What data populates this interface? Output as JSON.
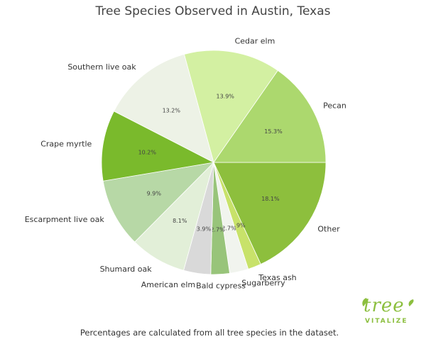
{
  "chart_data": {
    "type": "pie",
    "title": "Tree Species Observed in Austin, Texas",
    "slices": [
      {
        "label": "Other",
        "value": 18.1,
        "pct_label": "18.1%",
        "color": "#8dbf3d"
      },
      {
        "label": "Texas ash",
        "value": 1.9,
        "pct_label": "1.9%",
        "color": "#c8e26a"
      },
      {
        "label": "Sugarberry",
        "value": 2.7,
        "pct_label": "2.7%",
        "color": "#f1f4ee"
      },
      {
        "label": "Bald cypress",
        "value": 2.7,
        "pct_label": "2.7%",
        "color": "#98c47a"
      },
      {
        "label": "American elm",
        "value": 3.9,
        "pct_label": "3.9%",
        "color": "#d9d9d9"
      },
      {
        "label": "Shumard oak",
        "value": 8.1,
        "pct_label": "8.1%",
        "color": "#e2efd8"
      },
      {
        "label": "Escarpment live oak",
        "value": 9.9,
        "pct_label": "9.9%",
        "color": "#b7d8a6"
      },
      {
        "label": "Crape myrtle",
        "value": 10.2,
        "pct_label": "10.2%",
        "color": "#7aba2c"
      },
      {
        "label": "Southern live oak",
        "value": 13.2,
        "pct_label": "13.2%",
        "color": "#edf2e6"
      },
      {
        "label": "Cedar elm",
        "value": 13.9,
        "pct_label": "13.9%",
        "color": "#d3f0a2"
      },
      {
        "label": "Pecan",
        "value": 15.3,
        "pct_label": "15.3%",
        "color": "#acd86e"
      }
    ]
  },
  "footnote": "Percentages are calculated from all tree species in the dataset.",
  "logo": {
    "word": "tree",
    "sub": "VITALIZE",
    "color": "#8cbf3f"
  }
}
